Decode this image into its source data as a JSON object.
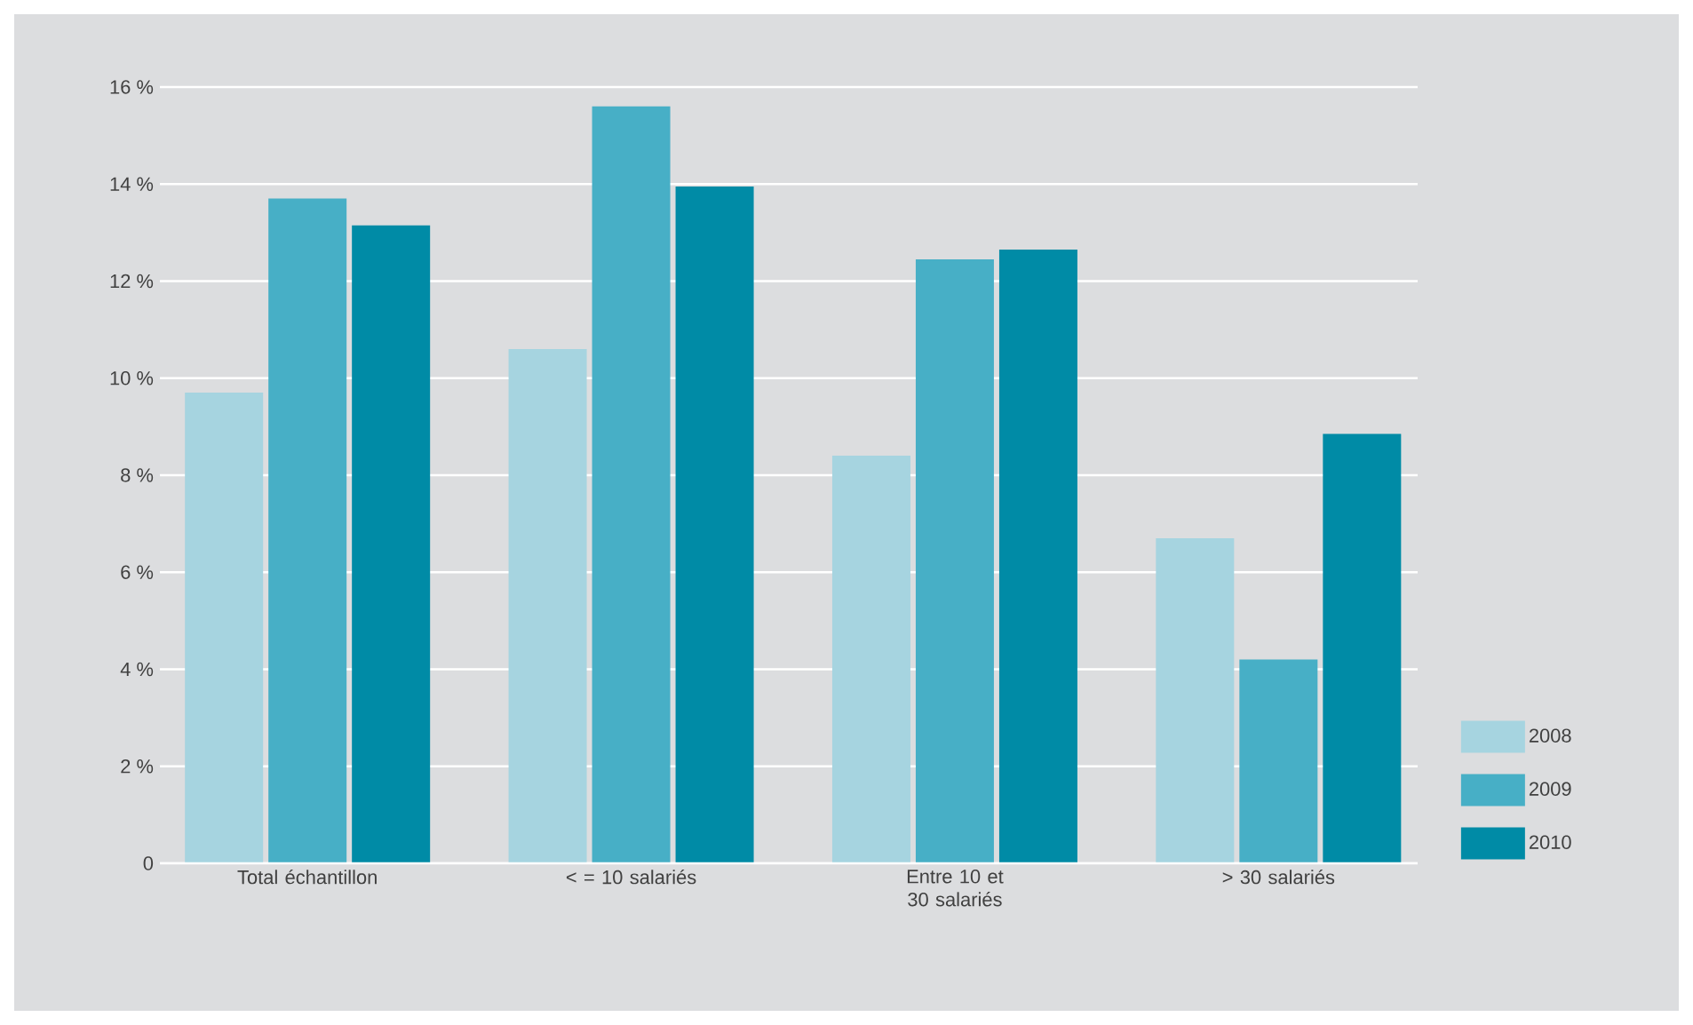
{
  "chart_data": {
    "type": "bar",
    "categories": [
      "Total échantillon",
      "< = 10 salariés",
      "Entre 10 et 30 salariés",
      "> 30 salariés"
    ],
    "series": [
      {
        "name": "2008",
        "color": "#a6d4e0",
        "values": [
          9.7,
          10.6,
          8.4,
          6.7
        ]
      },
      {
        "name": "2009",
        "color": "#47afc6",
        "values": [
          13.7,
          15.6,
          12.45,
          4.2
        ]
      },
      {
        "name": "2010",
        "color": "#008ba6",
        "values": [
          13.15,
          13.95,
          12.65,
          8.85
        ]
      }
    ],
    "ylim": [
      0,
      16
    ],
    "yticks": [
      0,
      {
        "value": 2,
        "label": "2 %"
      },
      {
        "value": 4,
        "label": "4 %"
      },
      {
        "value": 6,
        "label": "6 %"
      },
      {
        "value": 8,
        "label": "8 %"
      },
      {
        "value": 10,
        "label": "10 %"
      },
      {
        "value": 12,
        "label": "12 %"
      },
      {
        "value": 14,
        "label": "14 %"
      },
      {
        "value": 16,
        "label": "16 %"
      }
    ],
    "grid": "y",
    "legend": "bottom right"
  }
}
